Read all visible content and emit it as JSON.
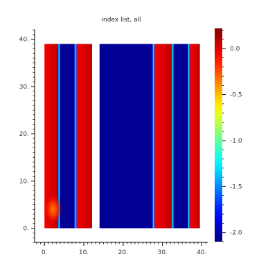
{
  "chart_data": {
    "type": "heatmap",
    "title": "index list, all",
    "xlabel": "",
    "ylabel": "",
    "xlim": [
      -2.5,
      41.5
    ],
    "ylim": [
      -3.0,
      42.0
    ],
    "x_ticks": [
      0,
      10,
      20,
      30,
      40
    ],
    "x_tick_labels": [
      "0.",
      "10.",
      "20.",
      "30.",
      "40."
    ],
    "y_ticks": [
      0,
      10,
      20,
      30,
      40
    ],
    "y_tick_labels": [
      "0.",
      "10.",
      "20.",
      "30.",
      "40."
    ],
    "grid": false,
    "colormap": "jet",
    "colorbar": {
      "range": [
        -2.1,
        0.22
      ],
      "ticks": [
        0.0,
        -0.5,
        -1.0,
        -1.5,
        -2.0
      ],
      "tick_labels": [
        "0.0",
        "-0.5",
        "-1.0",
        "-1.5",
        "-2.0"
      ],
      "placement": "right"
    },
    "y_extent": [
      0,
      39
    ],
    "regions": [
      {
        "x": [
          0,
          3.4
        ],
        "value": 0.0
      },
      {
        "x": [
          3.4,
          4.0
        ],
        "value": -1.5
      },
      {
        "x": [
          4.0,
          7.6
        ],
        "value": -2.05
      },
      {
        "x": [
          7.6,
          8.2
        ],
        "value": -1.5
      },
      {
        "x": [
          8.2,
          12.1
        ],
        "value": 0.0
      },
      {
        "x": [
          14.0,
          27.4
        ],
        "value": -2.05
      },
      {
        "x": [
          27.4,
          28.0
        ],
        "value": -1.5
      },
      {
        "x": [
          28.0,
          32.3
        ],
        "value": 0.0
      },
      {
        "x": [
          32.3,
          32.9
        ],
        "value": -1.5
      },
      {
        "x": [
          32.9,
          36.4
        ],
        "value": -2.05
      },
      {
        "x": [
          36.4,
          37.0
        ],
        "value": -1.5
      },
      {
        "x": [
          37.0,
          39.5
        ],
        "value": 0.0
      }
    ],
    "hotspot": {
      "x": 2.2,
      "y": 4.0,
      "value": -0.35
    }
  }
}
